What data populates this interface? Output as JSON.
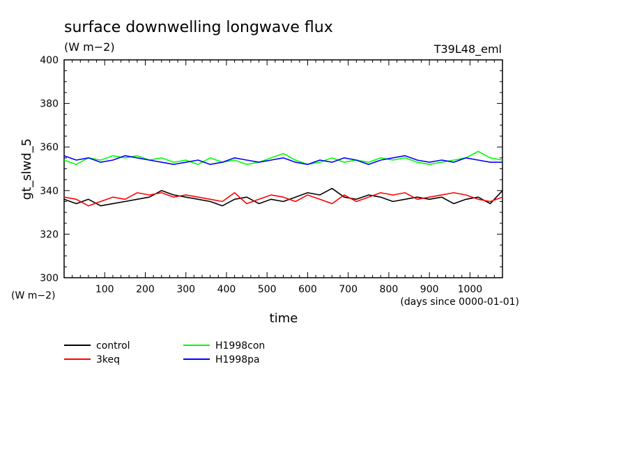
{
  "chart_data": {
    "type": "line",
    "title": "surface downwelling longwave flux",
    "title_units": "(W m−2)",
    "run_label": "T39L48_eml",
    "ylabel": "gt_slwd_5",
    "ylabel_units": "(W m−2)",
    "xlabel": "time",
    "xlabel_units": "(days since 0000-01-01)",
    "xlim": [
      0,
      1080
    ],
    "ylim": [
      300,
      400
    ],
    "xticks": [
      100,
      200,
      300,
      400,
      500,
      600,
      700,
      800,
      900,
      1000
    ],
    "yticks": [
      300,
      320,
      340,
      360,
      380,
      400
    ],
    "grid": false,
    "legend_position": "bottom-left",
    "x": [
      0,
      30,
      60,
      90,
      120,
      150,
      180,
      210,
      240,
      270,
      300,
      330,
      360,
      390,
      420,
      450,
      480,
      510,
      540,
      570,
      600,
      630,
      660,
      690,
      720,
      750,
      780,
      810,
      840,
      870,
      900,
      930,
      960,
      990,
      1020,
      1050,
      1080
    ],
    "series": [
      {
        "name": "control",
        "color": "#000000",
        "values": [
          336,
          334,
          336,
          333,
          334,
          335,
          336,
          337,
          340,
          338,
          337,
          336,
          335,
          333,
          336,
          337,
          334,
          336,
          335,
          337,
          339,
          338,
          341,
          337,
          336,
          338,
          337,
          335,
          336,
          337,
          336,
          337,
          334,
          336,
          337,
          334,
          340
        ]
      },
      {
        "name": "3keq",
        "color": "#ff0000",
        "values": [
          337,
          336,
          333,
          335,
          337,
          336,
          339,
          338,
          339,
          337,
          338,
          337,
          336,
          335,
          339,
          334,
          336,
          338,
          337,
          335,
          338,
          336,
          334,
          338,
          335,
          337,
          339,
          338,
          339,
          336,
          337,
          338,
          339,
          338,
          336,
          335,
          337
        ]
      },
      {
        "name": "H1998con",
        "color": "#00ff00",
        "values": [
          354,
          352,
          355,
          354,
          356,
          355,
          356,
          354,
          355,
          353,
          354,
          352,
          355,
          353,
          354,
          352,
          353,
          355,
          357,
          354,
          352,
          353,
          355,
          353,
          354,
          353,
          355,
          354,
          355,
          353,
          352,
          353,
          354,
          355,
          358,
          355,
          354
        ]
      },
      {
        "name": "H1998pa",
        "color": "#0000ff",
        "values": [
          356,
          354,
          355,
          353,
          354,
          356,
          355,
          354,
          353,
          352,
          353,
          354,
          352,
          353,
          355,
          354,
          353,
          354,
          355,
          353,
          352,
          354,
          353,
          355,
          354,
          352,
          354,
          355,
          356,
          354,
          353,
          354,
          353,
          355,
          354,
          353,
          353
        ]
      }
    ]
  }
}
